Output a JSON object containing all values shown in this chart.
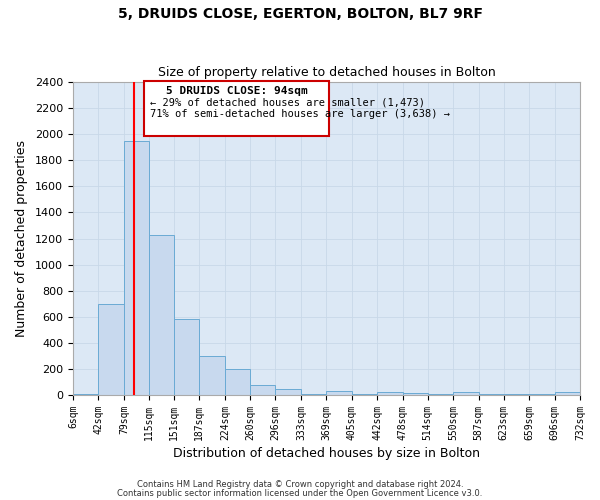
{
  "title": "5, DRUIDS CLOSE, EGERTON, BOLTON, BL7 9RF",
  "subtitle": "Size of property relative to detached houses in Bolton",
  "xlabel": "Distribution of detached houses by size in Bolton",
  "ylabel": "Number of detached properties",
  "bar_color": "#c8d9ee",
  "bar_edge_color": "#6aaad4",
  "grid_color": "#c8d8e8",
  "background_color": "#dce8f5",
  "fig_background": "#ffffff",
  "bin_edges": [
    6,
    42,
    79,
    115,
    151,
    187,
    224,
    260,
    296,
    333,
    369,
    405,
    442,
    478,
    514,
    550,
    587,
    623,
    659,
    696,
    732
  ],
  "bin_labels": [
    "6sqm",
    "42sqm",
    "79sqm",
    "115sqm",
    "151sqm",
    "187sqm",
    "224sqm",
    "260sqm",
    "296sqm",
    "333sqm",
    "369sqm",
    "405sqm",
    "442sqm",
    "478sqm",
    "514sqm",
    "550sqm",
    "587sqm",
    "623sqm",
    "659sqm",
    "696sqm",
    "732sqm"
  ],
  "counts": [
    10,
    700,
    1950,
    1230,
    580,
    300,
    200,
    80,
    50,
    10,
    35,
    10,
    20,
    15,
    5,
    20,
    5,
    5,
    5,
    20
  ],
  "property_value": 94,
  "property_label": "5 DRUIDS CLOSE: 94sqm",
  "ann_line2": "← 29% of detached houses are smaller (1,473)",
  "ann_line3": "71% of semi-detached houses are larger (3,638) →",
  "red_line_x": 94,
  "ylim": [
    0,
    2400
  ],
  "yticks": [
    0,
    200,
    400,
    600,
    800,
    1000,
    1200,
    1400,
    1600,
    1800,
    2000,
    2200,
    2400
  ],
  "annotation_box_color": "#ffffff",
  "annotation_box_edge": "#cc0000",
  "footer1": "Contains HM Land Registry data © Crown copyright and database right 2024.",
  "footer2": "Contains public sector information licensed under the Open Government Licence v3.0."
}
